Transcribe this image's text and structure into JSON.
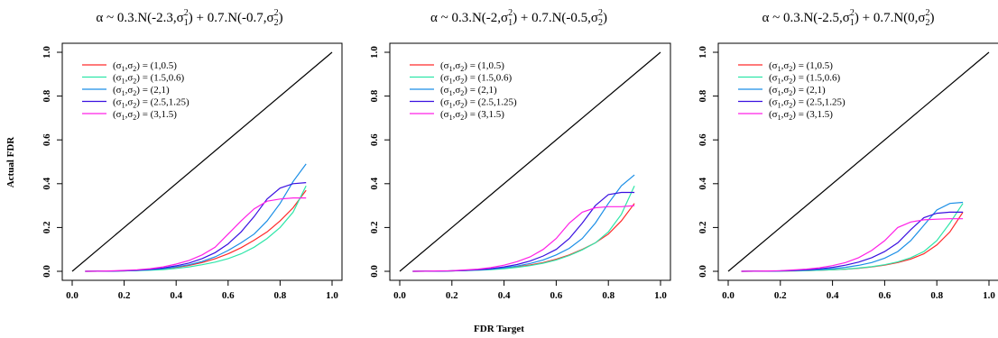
{
  "figure": {
    "xlabel": "FDR Target",
    "ylabel": "Actual FDR"
  },
  "colors": [
    "#ff2a2a",
    "#2ee6a8",
    "#1a8ee6",
    "#3a10e0",
    "#ff20e6"
  ],
  "chart_data": [
    {
      "type": "line",
      "title_parts": [
        "α ~ 0.3.N(-2.3,σ",
        "1",
        "2",
        ") + 0.7.N(-0.7,σ",
        "2",
        "2",
        ")"
      ],
      "xlim": [
        0,
        1
      ],
      "ylim": [
        0,
        1
      ],
      "xticks": [
        "0.0",
        "0.2",
        "0.4",
        "0.6",
        "0.8",
        "1.0"
      ],
      "yticks": [
        "0.0",
        "0.2",
        "0.4",
        "0.6",
        "0.8",
        "1.0"
      ],
      "x": [
        0.05,
        0.1,
        0.15,
        0.2,
        0.25,
        0.3,
        0.35,
        0.4,
        0.45,
        0.5,
        0.55,
        0.6,
        0.65,
        0.7,
        0.75,
        0.8,
        0.85,
        0.9
      ],
      "reference_line": {
        "x": [
          0,
          1
        ],
        "y": [
          0,
          1
        ]
      },
      "legend_placement": "top-left",
      "series": [
        {
          "name": "(σ1,σ2) = (1,0.5)",
          "values": [
            0.0,
            0.0005,
            0.001,
            0.002,
            0.004,
            0.007,
            0.011,
            0.018,
            0.027,
            0.04,
            0.057,
            0.08,
            0.108,
            0.142,
            0.18,
            0.23,
            0.29,
            0.37
          ]
        },
        {
          "name": "(σ1,σ2) = (1.5,0.6)",
          "values": [
            0.0,
            0.0005,
            0.001,
            0.002,
            0.003,
            0.005,
            0.008,
            0.013,
            0.02,
            0.03,
            0.042,
            0.058,
            0.08,
            0.11,
            0.15,
            0.2,
            0.27,
            0.39
          ]
        },
        {
          "name": "(σ1,σ2) = (2,1)",
          "values": [
            0.0,
            0.0005,
            0.001,
            0.002,
            0.004,
            0.007,
            0.012,
            0.02,
            0.03,
            0.045,
            0.066,
            0.095,
            0.13,
            0.17,
            0.23,
            0.31,
            0.41,
            0.49
          ]
        },
        {
          "name": "(σ1,σ2) = (2.5,1.25)",
          "values": [
            0.0,
            0.0005,
            0.001,
            0.003,
            0.005,
            0.009,
            0.015,
            0.025,
            0.038,
            0.058,
            0.085,
            0.125,
            0.18,
            0.25,
            0.33,
            0.38,
            0.4,
            0.405
          ]
        },
        {
          "name": "(σ1,σ2) = (3,1.5)",
          "values": [
            0.0,
            0.001,
            0.002,
            0.004,
            0.007,
            0.012,
            0.02,
            0.033,
            0.05,
            0.075,
            0.11,
            0.17,
            0.23,
            0.285,
            0.32,
            0.33,
            0.335,
            0.335
          ]
        }
      ]
    },
    {
      "type": "line",
      "title_parts": [
        "α ~ 0.3.N(-2,σ",
        "1",
        "2",
        ") + 0.7.N(-0.5,σ",
        "2",
        "2",
        ")"
      ],
      "xlim": [
        0,
        1
      ],
      "ylim": [
        0,
        1
      ],
      "xticks": [
        "0.0",
        "0.2",
        "0.4",
        "0.6",
        "0.8",
        "1.0"
      ],
      "yticks": [
        "0.0",
        "0.2",
        "0.4",
        "0.6",
        "0.8",
        "1.0"
      ],
      "x": [
        0.05,
        0.1,
        0.15,
        0.2,
        0.25,
        0.3,
        0.35,
        0.4,
        0.45,
        0.5,
        0.55,
        0.6,
        0.65,
        0.7,
        0.75,
        0.8,
        0.85,
        0.9
      ],
      "reference_line": {
        "x": [
          0,
          1
        ],
        "y": [
          0,
          1
        ]
      },
      "legend_placement": "top-left",
      "series": [
        {
          "name": "(σ1,σ2) = (1,0.5)",
          "values": [
            0.0,
            0.0005,
            0.001,
            0.002,
            0.004,
            0.006,
            0.009,
            0.014,
            0.02,
            0.029,
            0.04,
            0.055,
            0.075,
            0.1,
            0.13,
            0.17,
            0.23,
            0.31
          ]
        },
        {
          "name": "(σ1,σ2) = (1.5,0.6)",
          "values": [
            0.0,
            0.0005,
            0.001,
            0.002,
            0.003,
            0.005,
            0.008,
            0.012,
            0.018,
            0.026,
            0.037,
            0.052,
            0.072,
            0.098,
            0.13,
            0.18,
            0.26,
            0.39
          ]
        },
        {
          "name": "(σ1,σ2) = (2,1)",
          "values": [
            0.0,
            0.0005,
            0.001,
            0.002,
            0.004,
            0.006,
            0.01,
            0.016,
            0.024,
            0.036,
            0.052,
            0.075,
            0.105,
            0.15,
            0.22,
            0.31,
            0.39,
            0.44
          ]
        },
        {
          "name": "(σ1,σ2) = (2.5,1.25)",
          "values": [
            0.0,
            0.0005,
            0.001,
            0.002,
            0.004,
            0.007,
            0.012,
            0.02,
            0.031,
            0.047,
            0.07,
            0.1,
            0.15,
            0.22,
            0.3,
            0.35,
            0.36,
            0.36
          ]
        },
        {
          "name": "(σ1,σ2) = (3,1.5)",
          "values": [
            0.0,
            0.001,
            0.002,
            0.003,
            0.006,
            0.01,
            0.017,
            0.028,
            0.044,
            0.066,
            0.1,
            0.15,
            0.22,
            0.27,
            0.29,
            0.295,
            0.295,
            0.3
          ]
        }
      ]
    },
    {
      "type": "line",
      "title_parts": [
        "α ~ 0.3.N(-2.5,σ",
        "1",
        "2",
        ") + 0.7.N(0,σ",
        "2",
        "2",
        ")"
      ],
      "xlim": [
        0,
        1
      ],
      "ylim": [
        0,
        1
      ],
      "xticks": [
        "0.0",
        "0.2",
        "0.4",
        "0.6",
        "0.8",
        "1.0"
      ],
      "yticks": [
        "0.0",
        "0.2",
        "0.4",
        "0.6",
        "0.8",
        "1.0"
      ],
      "x": [
        0.05,
        0.1,
        0.15,
        0.2,
        0.25,
        0.3,
        0.35,
        0.4,
        0.45,
        0.5,
        0.55,
        0.6,
        0.65,
        0.7,
        0.75,
        0.8,
        0.85,
        0.9
      ],
      "reference_line": {
        "x": [
          0,
          1
        ],
        "y": [
          0,
          1
        ]
      },
      "legend_placement": "top-left",
      "series": [
        {
          "name": "(σ1,σ2) = (1,0.5)",
          "values": [
            0.0,
            0.0003,
            0.0006,
            0.001,
            0.002,
            0.003,
            0.005,
            0.007,
            0.01,
            0.014,
            0.02,
            0.028,
            0.04,
            0.056,
            0.08,
            0.12,
            0.18,
            0.27
          ]
        },
        {
          "name": "(σ1,σ2) = (1.5,0.6)",
          "values": [
            0.0,
            0.0003,
            0.0006,
            0.001,
            0.002,
            0.003,
            0.005,
            0.007,
            0.01,
            0.015,
            0.021,
            0.03,
            0.043,
            0.062,
            0.09,
            0.14,
            0.22,
            0.31
          ]
        },
        {
          "name": "(σ1,σ2) = (2,1)",
          "values": [
            0.0,
            0.0004,
            0.0008,
            0.0015,
            0.003,
            0.005,
            0.008,
            0.012,
            0.018,
            0.027,
            0.04,
            0.06,
            0.09,
            0.14,
            0.21,
            0.28,
            0.31,
            0.315
          ]
        },
        {
          "name": "(σ1,σ2) = (2.5,1.25)",
          "values": [
            0.0,
            0.0005,
            0.001,
            0.002,
            0.004,
            0.007,
            0.011,
            0.018,
            0.028,
            0.042,
            0.062,
            0.09,
            0.13,
            0.19,
            0.245,
            0.265,
            0.27,
            0.27
          ]
        },
        {
          "name": "(σ1,σ2) = (3,1.5)",
          "values": [
            0.0,
            0.0008,
            0.0016,
            0.003,
            0.006,
            0.01,
            0.016,
            0.026,
            0.04,
            0.062,
            0.095,
            0.14,
            0.2,
            0.225,
            0.235,
            0.238,
            0.24,
            0.24
          ]
        }
      ]
    }
  ]
}
